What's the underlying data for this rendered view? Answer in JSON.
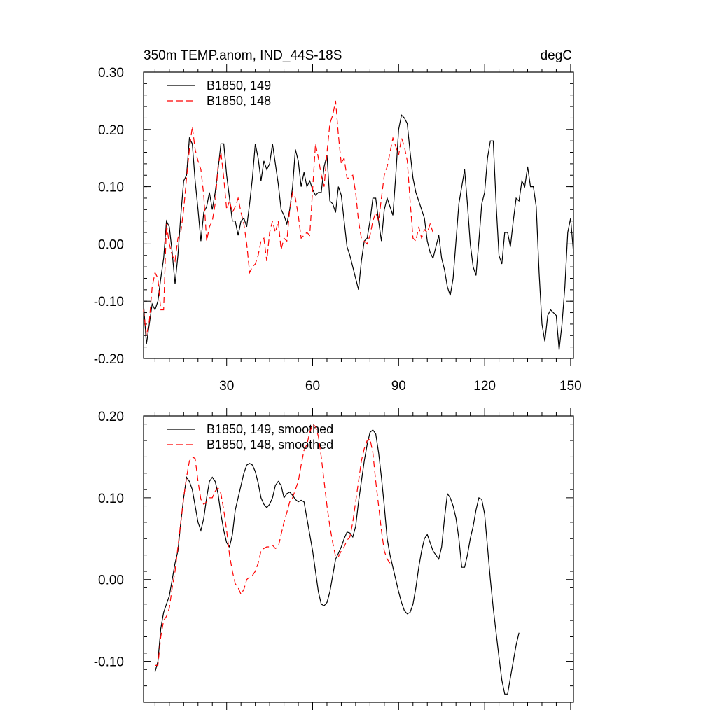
{
  "header": {
    "left_title": "350m TEMP.anom, IND_44S-18S",
    "right_title": "degC"
  },
  "chart_data": [
    {
      "type": "line",
      "xlim": [
        1,
        151
      ],
      "ylim": [
        -0.2,
        0.3
      ],
      "yticks": [
        -0.2,
        -0.1,
        0.0,
        0.1,
        0.2,
        0.3
      ],
      "ytick_labels": [
        "-0.20",
        "-0.10",
        "0.00",
        "0.10",
        "0.20",
        "0.30"
      ],
      "xticks": [
        30,
        60,
        90,
        120,
        150
      ],
      "xtick_labels": [
        "30",
        "60",
        "90",
        "120",
        "150"
      ],
      "legend_position": "top-left",
      "series": [
        {
          "name": "B1850, 149",
          "color": "#000000",
          "dash": "solid",
          "x_start": 1,
          "values": [
            -0.105,
            -0.175,
            -0.14,
            -0.105,
            -0.115,
            -0.1,
            -0.06,
            -0.025,
            0.04,
            0.03,
            -0.015,
            -0.07,
            -0.02,
            0.05,
            0.11,
            0.12,
            0.185,
            0.175,
            0.11,
            0.06,
            0.005,
            0.055,
            0.065,
            0.09,
            0.06,
            0.09,
            0.13,
            0.175,
            0.175,
            0.12,
            0.08,
            0.04,
            0.04,
            0.015,
            0.04,
            0.045,
            0.03,
            0.07,
            0.115,
            0.175,
            0.15,
            0.11,
            0.145,
            0.13,
            0.14,
            0.175,
            0.14,
            0.105,
            0.06,
            0.05,
            0.035,
            0.06,
            0.1,
            0.165,
            0.145,
            0.1,
            0.125,
            0.1,
            0.11,
            0.095,
            0.085,
            0.09,
            0.09,
            0.135,
            0.155,
            0.075,
            0.07,
            0.055,
            0.1,
            0.085,
            0.04,
            -0.005,
            -0.02,
            -0.04,
            -0.06,
            -0.08,
            -0.03,
            0.005,
            0.01,
            0.04,
            0.08,
            0.08,
            0.04,
            0.005,
            0.06,
            0.08,
            0.065,
            0.05,
            0.12,
            0.2,
            0.225,
            0.22,
            0.21,
            0.16,
            0.115,
            0.09,
            0.075,
            0.06,
            0.045,
            0.005,
            -0.015,
            -0.025,
            -0.005,
            0.015,
            -0.025,
            -0.045,
            -0.075,
            -0.09,
            -0.06,
            0.005,
            0.07,
            0.1,
            0.13,
            0.07,
            0.0,
            -0.04,
            -0.055,
            0.005,
            0.07,
            0.09,
            0.15,
            0.18,
            0.18,
            0.07,
            -0.02,
            -0.035,
            0.02,
            0.02,
            -0.005,
            0.04,
            0.08,
            0.075,
            0.11,
            0.1,
            0.135,
            0.1,
            0.1,
            0.065,
            -0.05,
            -0.14,
            -0.17,
            -0.125,
            -0.115,
            -0.12,
            -0.125,
            -0.185,
            -0.14,
            -0.075,
            0.02,
            0.045,
            -0.015
          ]
        },
        {
          "name": "B1850, 148",
          "color": "#ff0000",
          "dash": "dashed",
          "x_start": 1,
          "values": [
            -0.115,
            -0.16,
            -0.135,
            -0.075,
            -0.05,
            -0.06,
            -0.115,
            -0.115,
            0.035,
            0.0,
            -0.02,
            -0.03,
            0.01,
            0.02,
            0.06,
            0.115,
            0.165,
            0.205,
            0.165,
            0.145,
            0.13,
            0.085,
            0.005,
            0.03,
            0.04,
            0.07,
            0.135,
            0.16,
            0.115,
            0.06,
            0.075,
            0.055,
            0.065,
            0.08,
            0.055,
            0.035,
            0.0,
            -0.05,
            -0.04,
            -0.035,
            -0.02,
            0.005,
            0.01,
            -0.03,
            0.02,
            0.04,
            0.02,
            0.04,
            -0.01,
            0.01,
            0.005,
            0.06,
            0.09,
            0.08,
            0.05,
            0.01,
            0.015,
            0.02,
            0.015,
            0.095,
            0.175,
            0.15,
            0.12,
            0.1,
            0.16,
            0.21,
            0.225,
            0.25,
            0.19,
            0.14,
            0.15,
            0.115,
            0.115,
            0.12,
            0.09,
            0.04,
            0.01,
            0.005,
            0.0,
            0.015,
            0.04,
            0.055,
            0.04,
            0.08,
            0.12,
            0.135,
            0.16,
            0.185,
            0.17,
            0.155,
            0.185,
            0.17,
            0.145,
            0.075,
            0.01,
            0.005,
            0.03,
            0.01,
            0.025,
            0.02,
            0.035,
            0.02
          ]
        }
      ]
    },
    {
      "type": "line",
      "xlim": [
        1,
        151
      ],
      "ylim": [
        -0.15,
        0.2
      ],
      "yticks": [
        -0.1,
        0.0,
        0.1,
        0.2
      ],
      "ytick_labels": [
        "-0.10",
        "0.00",
        "0.10",
        "0.20"
      ],
      "xticks": [
        30,
        60,
        90,
        120,
        150
      ],
      "xtick_labels": [],
      "legend_position": "top-left",
      "series": [
        {
          "name": "B1850, 149, smoothed",
          "color": "#000000",
          "dash": "solid",
          "x_start": 5,
          "values": [
            -0.113,
            -0.1,
            -0.06,
            -0.04,
            -0.03,
            -0.02,
            0.0,
            0.02,
            0.035,
            0.07,
            0.1,
            0.125,
            0.12,
            0.11,
            0.09,
            0.07,
            0.06,
            0.075,
            0.1,
            0.12,
            0.125,
            0.12,
            0.105,
            0.08,
            0.06,
            0.045,
            0.04,
            0.055,
            0.085,
            0.1,
            0.115,
            0.13,
            0.14,
            0.142,
            0.14,
            0.132,
            0.118,
            0.1,
            0.092,
            0.088,
            0.092,
            0.1,
            0.115,
            0.12,
            0.115,
            0.1,
            0.105,
            0.107,
            0.103,
            0.098,
            0.095,
            0.097,
            0.095,
            0.075,
            0.055,
            0.035,
            0.01,
            -0.015,
            -0.03,
            -0.032,
            -0.028,
            -0.015,
            0.005,
            0.025,
            0.032,
            0.04,
            0.05,
            0.058,
            0.057,
            0.052,
            0.065,
            0.095,
            0.12,
            0.145,
            0.165,
            0.18,
            0.183,
            0.178,
            0.155,
            0.125,
            0.09,
            0.05,
            0.03,
            0.015,
            0.0,
            -0.015,
            -0.028,
            -0.038,
            -0.042,
            -0.04,
            -0.03,
            -0.01,
            0.015,
            0.035,
            0.05,
            0.055,
            0.045,
            0.035,
            0.03,
            0.025,
            0.04,
            0.075,
            0.105,
            0.1,
            0.09,
            0.075,
            0.05,
            0.015,
            0.015,
            0.03,
            0.05,
            0.065,
            0.085,
            0.1,
            0.098,
            0.08,
            0.04,
            0.0,
            -0.035,
            -0.065,
            -0.095,
            -0.123,
            -0.14,
            -0.14,
            -0.12,
            -0.1,
            -0.08,
            -0.065
          ]
        },
        {
          "name": "B1850, 148, smoothed",
          "color": "#ff0000",
          "dash": "dashed",
          "x_start": 5,
          "values": [
            -0.105,
            -0.105,
            -0.07,
            -0.05,
            -0.045,
            -0.035,
            -0.01,
            0.01,
            0.04,
            0.07,
            0.1,
            0.125,
            0.145,
            0.15,
            0.148,
            0.12,
            0.098,
            0.092,
            0.095,
            0.1,
            0.1,
            0.108,
            0.112,
            0.105,
            0.085,
            0.06,
            0.03,
            0.01,
            -0.005,
            -0.01,
            -0.018,
            -0.012,
            0.0,
            0.003,
            0.005,
            0.01,
            0.02,
            0.035,
            0.038,
            0.04,
            0.04,
            0.042,
            0.038,
            0.04,
            0.055,
            0.07,
            0.082,
            0.095,
            0.1,
            0.11,
            0.12,
            0.14,
            0.158,
            0.165,
            0.18,
            0.19,
            0.187,
            0.175,
            0.15,
            0.12,
            0.09,
            0.065,
            0.045,
            0.028,
            0.028,
            0.035,
            0.04,
            0.048,
            0.052,
            0.07,
            0.095,
            0.12,
            0.145,
            0.16,
            0.17,
            0.172,
            0.155,
            0.12,
            0.09,
            0.06,
            0.035,
            0.025,
            0.02
          ]
        }
      ]
    }
  ]
}
